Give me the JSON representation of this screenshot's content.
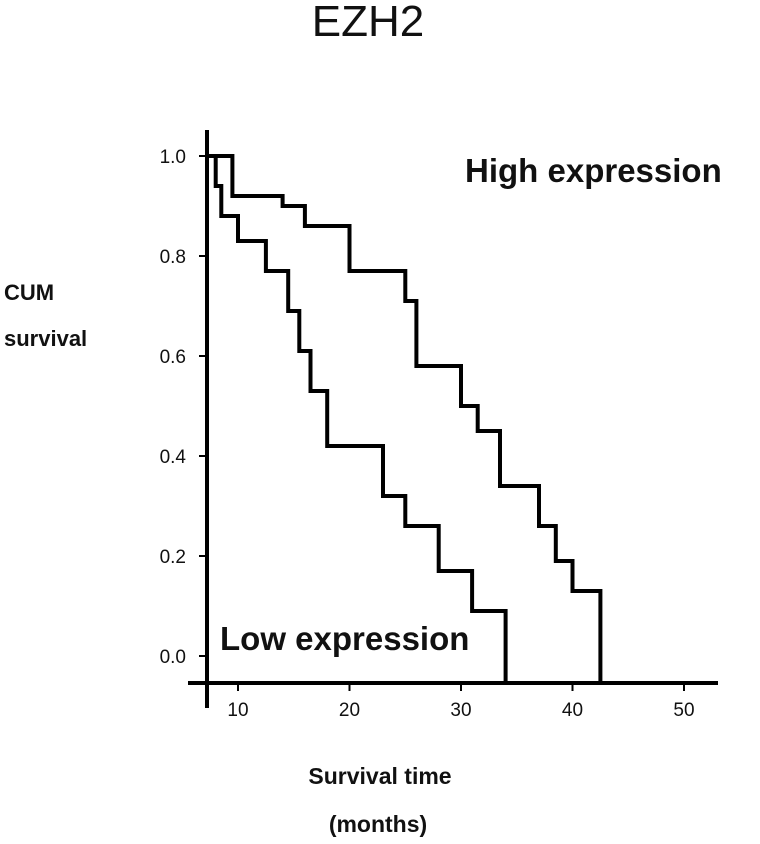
{
  "chart_data": {
    "type": "line",
    "step": true,
    "title": "EZH2",
    "ylabel": [
      "CUM",
      "survival"
    ],
    "xlabel": [
      "Survival time",
      "(months)"
    ],
    "xlim": [
      7,
      53
    ],
    "ylim": [
      -0.06,
      1.05
    ],
    "x_ticks": [
      10,
      20,
      30,
      40,
      50
    ],
    "y_ticks": [
      0.0,
      0.2,
      0.4,
      0.6,
      0.8,
      1.0
    ],
    "y_tick_labels": [
      "0.0",
      "0.2",
      "0.4",
      "0.6",
      "0.8",
      "1.0"
    ],
    "series": [
      {
        "name": "High expression",
        "points": [
          [
            7.2,
            1.0
          ],
          [
            9.5,
            1.0
          ],
          [
            9.5,
            0.92
          ],
          [
            14.0,
            0.92
          ],
          [
            14.0,
            0.9
          ],
          [
            16.0,
            0.9
          ],
          [
            16.0,
            0.86
          ],
          [
            20.0,
            0.86
          ],
          [
            20.0,
            0.77
          ],
          [
            25.0,
            0.77
          ],
          [
            25.0,
            0.71
          ],
          [
            26.0,
            0.71
          ],
          [
            26.0,
            0.58
          ],
          [
            30.0,
            0.58
          ],
          [
            30.0,
            0.5
          ],
          [
            31.5,
            0.5
          ],
          [
            31.5,
            0.45
          ],
          [
            33.5,
            0.45
          ],
          [
            33.5,
            0.34
          ],
          [
            37.0,
            0.34
          ],
          [
            37.0,
            0.26
          ],
          [
            38.5,
            0.26
          ],
          [
            38.5,
            0.19
          ],
          [
            40.0,
            0.19
          ],
          [
            40.0,
            0.13
          ],
          [
            42.5,
            0.13
          ],
          [
            42.5,
            -0.05
          ]
        ]
      },
      {
        "name": "Low expression",
        "points": [
          [
            7.2,
            1.0
          ],
          [
            8.0,
            1.0
          ],
          [
            8.0,
            0.94
          ],
          [
            8.5,
            0.94
          ],
          [
            8.5,
            0.88
          ],
          [
            10.0,
            0.88
          ],
          [
            10.0,
            0.83
          ],
          [
            12.5,
            0.83
          ],
          [
            12.5,
            0.77
          ],
          [
            14.5,
            0.77
          ],
          [
            14.5,
            0.69
          ],
          [
            15.5,
            0.69
          ],
          [
            15.5,
            0.61
          ],
          [
            16.5,
            0.61
          ],
          [
            16.5,
            0.53
          ],
          [
            18.0,
            0.53
          ],
          [
            18.0,
            0.42
          ],
          [
            23.0,
            0.42
          ],
          [
            23.0,
            0.32
          ],
          [
            25.0,
            0.32
          ],
          [
            25.0,
            0.26
          ],
          [
            28.0,
            0.26
          ],
          [
            28.0,
            0.17
          ],
          [
            31.0,
            0.17
          ],
          [
            31.0,
            0.09
          ],
          [
            34.0,
            0.09
          ],
          [
            34.0,
            -0.05
          ]
        ]
      }
    ],
    "annotations": {
      "high_label": "High  expression",
      "low_label": "Low expression"
    }
  }
}
